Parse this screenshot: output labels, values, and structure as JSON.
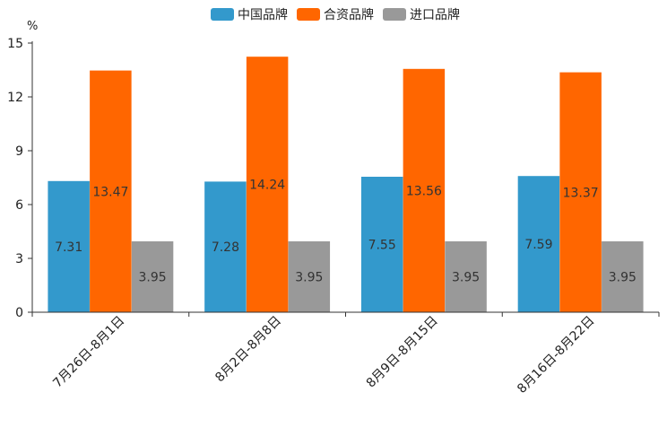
{
  "chart_data": {
    "type": "bar",
    "unit": "%",
    "categories": [
      "7月26日-8月1日",
      "8月2日-8月8日",
      "8月9日-8月15日",
      "8月16日-8月22日"
    ],
    "series": [
      {
        "name": "中国品牌",
        "color": "#3399cc",
        "values": [
          7.31,
          7.28,
          7.55,
          7.59
        ]
      },
      {
        "name": "合资品牌",
        "color": "#ff6600",
        "values": [
          13.47,
          14.24,
          13.56,
          13.37
        ]
      },
      {
        "name": "进口品牌",
        "color": "#999999",
        "values": [
          3.95,
          3.95,
          3.95,
          3.95
        ]
      }
    ],
    "yticks": [
      0,
      3,
      6,
      9,
      12,
      15
    ],
    "ylim": [
      0,
      15
    ],
    "legend_position": "top-center"
  }
}
